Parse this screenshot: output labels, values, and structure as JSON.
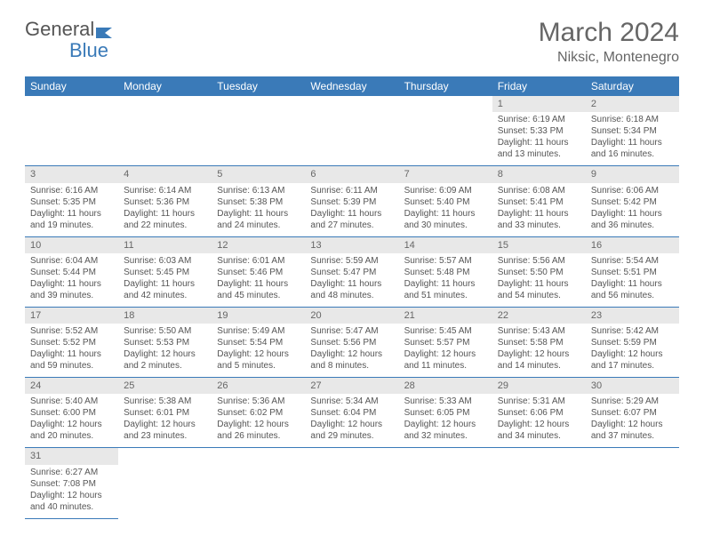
{
  "brand": {
    "name1": "General",
    "name2": "Blue",
    "color1": "#666666",
    "color2": "#3a7ab8"
  },
  "title": "March 2024",
  "location": "Niksic, Montenegro",
  "weekdays": [
    "Sunday",
    "Monday",
    "Tuesday",
    "Wednesday",
    "Thursday",
    "Friday",
    "Saturday"
  ],
  "colors": {
    "header_bg": "#3a7ab8",
    "header_fg": "#ffffff",
    "daynum_bg": "#e8e8e8",
    "text": "#555555",
    "row_border": "#3a7ab8"
  },
  "fonts": {
    "title_size": 30,
    "location_size": 16,
    "weekday_size": 12,
    "daynum_size": 11,
    "detail_size": 10
  },
  "weeks": [
    [
      null,
      null,
      null,
      null,
      null,
      {
        "n": "1",
        "sr": "Sunrise: 6:19 AM",
        "ss": "Sunset: 5:33 PM",
        "dl": "Daylight: 11 hours and 13 minutes."
      },
      {
        "n": "2",
        "sr": "Sunrise: 6:18 AM",
        "ss": "Sunset: 5:34 PM",
        "dl": "Daylight: 11 hours and 16 minutes."
      }
    ],
    [
      {
        "n": "3",
        "sr": "Sunrise: 6:16 AM",
        "ss": "Sunset: 5:35 PM",
        "dl": "Daylight: 11 hours and 19 minutes."
      },
      {
        "n": "4",
        "sr": "Sunrise: 6:14 AM",
        "ss": "Sunset: 5:36 PM",
        "dl": "Daylight: 11 hours and 22 minutes."
      },
      {
        "n": "5",
        "sr": "Sunrise: 6:13 AM",
        "ss": "Sunset: 5:38 PM",
        "dl": "Daylight: 11 hours and 24 minutes."
      },
      {
        "n": "6",
        "sr": "Sunrise: 6:11 AM",
        "ss": "Sunset: 5:39 PM",
        "dl": "Daylight: 11 hours and 27 minutes."
      },
      {
        "n": "7",
        "sr": "Sunrise: 6:09 AM",
        "ss": "Sunset: 5:40 PM",
        "dl": "Daylight: 11 hours and 30 minutes."
      },
      {
        "n": "8",
        "sr": "Sunrise: 6:08 AM",
        "ss": "Sunset: 5:41 PM",
        "dl": "Daylight: 11 hours and 33 minutes."
      },
      {
        "n": "9",
        "sr": "Sunrise: 6:06 AM",
        "ss": "Sunset: 5:42 PM",
        "dl": "Daylight: 11 hours and 36 minutes."
      }
    ],
    [
      {
        "n": "10",
        "sr": "Sunrise: 6:04 AM",
        "ss": "Sunset: 5:44 PM",
        "dl": "Daylight: 11 hours and 39 minutes."
      },
      {
        "n": "11",
        "sr": "Sunrise: 6:03 AM",
        "ss": "Sunset: 5:45 PM",
        "dl": "Daylight: 11 hours and 42 minutes."
      },
      {
        "n": "12",
        "sr": "Sunrise: 6:01 AM",
        "ss": "Sunset: 5:46 PM",
        "dl": "Daylight: 11 hours and 45 minutes."
      },
      {
        "n": "13",
        "sr": "Sunrise: 5:59 AM",
        "ss": "Sunset: 5:47 PM",
        "dl": "Daylight: 11 hours and 48 minutes."
      },
      {
        "n": "14",
        "sr": "Sunrise: 5:57 AM",
        "ss": "Sunset: 5:48 PM",
        "dl": "Daylight: 11 hours and 51 minutes."
      },
      {
        "n": "15",
        "sr": "Sunrise: 5:56 AM",
        "ss": "Sunset: 5:50 PM",
        "dl": "Daylight: 11 hours and 54 minutes."
      },
      {
        "n": "16",
        "sr": "Sunrise: 5:54 AM",
        "ss": "Sunset: 5:51 PM",
        "dl": "Daylight: 11 hours and 56 minutes."
      }
    ],
    [
      {
        "n": "17",
        "sr": "Sunrise: 5:52 AM",
        "ss": "Sunset: 5:52 PM",
        "dl": "Daylight: 11 hours and 59 minutes."
      },
      {
        "n": "18",
        "sr": "Sunrise: 5:50 AM",
        "ss": "Sunset: 5:53 PM",
        "dl": "Daylight: 12 hours and 2 minutes."
      },
      {
        "n": "19",
        "sr": "Sunrise: 5:49 AM",
        "ss": "Sunset: 5:54 PM",
        "dl": "Daylight: 12 hours and 5 minutes."
      },
      {
        "n": "20",
        "sr": "Sunrise: 5:47 AM",
        "ss": "Sunset: 5:56 PM",
        "dl": "Daylight: 12 hours and 8 minutes."
      },
      {
        "n": "21",
        "sr": "Sunrise: 5:45 AM",
        "ss": "Sunset: 5:57 PM",
        "dl": "Daylight: 12 hours and 11 minutes."
      },
      {
        "n": "22",
        "sr": "Sunrise: 5:43 AM",
        "ss": "Sunset: 5:58 PM",
        "dl": "Daylight: 12 hours and 14 minutes."
      },
      {
        "n": "23",
        "sr": "Sunrise: 5:42 AM",
        "ss": "Sunset: 5:59 PM",
        "dl": "Daylight: 12 hours and 17 minutes."
      }
    ],
    [
      {
        "n": "24",
        "sr": "Sunrise: 5:40 AM",
        "ss": "Sunset: 6:00 PM",
        "dl": "Daylight: 12 hours and 20 minutes."
      },
      {
        "n": "25",
        "sr": "Sunrise: 5:38 AM",
        "ss": "Sunset: 6:01 PM",
        "dl": "Daylight: 12 hours and 23 minutes."
      },
      {
        "n": "26",
        "sr": "Sunrise: 5:36 AM",
        "ss": "Sunset: 6:02 PM",
        "dl": "Daylight: 12 hours and 26 minutes."
      },
      {
        "n": "27",
        "sr": "Sunrise: 5:34 AM",
        "ss": "Sunset: 6:04 PM",
        "dl": "Daylight: 12 hours and 29 minutes."
      },
      {
        "n": "28",
        "sr": "Sunrise: 5:33 AM",
        "ss": "Sunset: 6:05 PM",
        "dl": "Daylight: 12 hours and 32 minutes."
      },
      {
        "n": "29",
        "sr": "Sunrise: 5:31 AM",
        "ss": "Sunset: 6:06 PM",
        "dl": "Daylight: 12 hours and 34 minutes."
      },
      {
        "n": "30",
        "sr": "Sunrise: 5:29 AM",
        "ss": "Sunset: 6:07 PM",
        "dl": "Daylight: 12 hours and 37 minutes."
      }
    ],
    [
      {
        "n": "31",
        "sr": "Sunrise: 6:27 AM",
        "ss": "Sunset: 7:08 PM",
        "dl": "Daylight: 12 hours and 40 minutes."
      },
      null,
      null,
      null,
      null,
      null,
      null
    ]
  ]
}
